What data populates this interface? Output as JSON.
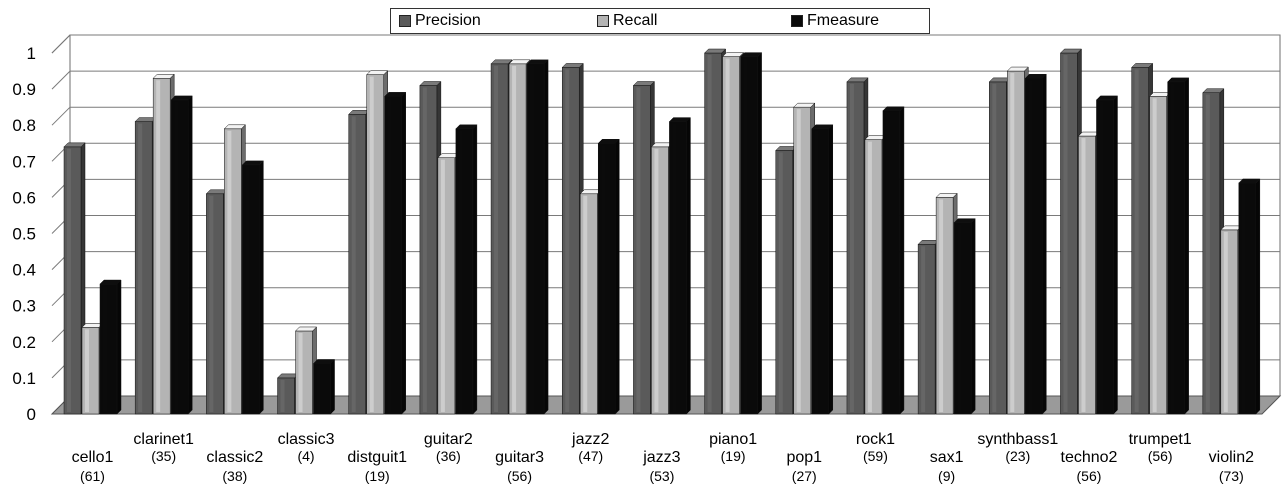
{
  "chart_data": {
    "type": "bar",
    "title": "",
    "xlabel": "",
    "ylabel": "",
    "ylim": [
      0,
      1
    ],
    "yticks": [
      "0",
      "0.1",
      "0.2",
      "0.3",
      "0.4",
      "0.5",
      "0.6",
      "0.7",
      "0.8",
      "0.9",
      "1"
    ],
    "grid": true,
    "legend_position": "top-center",
    "categories": [
      "cello1",
      "clarinet1",
      "classic2",
      "classic3",
      "distguit1",
      "guitar2",
      "guitar3",
      "jazz2",
      "jazz3",
      "piano1",
      "pop1",
      "rock1",
      "sax1",
      "synthbass1",
      "techno2",
      "trumpet1",
      "violin2"
    ],
    "category_counts": [
      "(61)",
      "(35)",
      "(38)",
      "(4)",
      "(19)",
      "(36)",
      "(56)",
      "(47)",
      "(53)",
      "(19)",
      "(27)",
      "(59)",
      "(9)",
      "(23)",
      "(56)",
      "(56)",
      "(73)"
    ],
    "series": [
      {
        "name": "Precision",
        "color": "#5a5a5a",
        "values": [
          0.74,
          0.81,
          0.61,
          0.1,
          0.83,
          0.91,
          0.97,
          0.96,
          0.91,
          1.0,
          0.73,
          0.92,
          0.47,
          0.92,
          1.0,
          0.96,
          0.89
        ]
      },
      {
        "name": "Recall",
        "color": "#b4b4b4",
        "values": [
          0.24,
          0.93,
          0.79,
          0.23,
          0.94,
          0.71,
          0.97,
          0.61,
          0.74,
          0.99,
          0.85,
          0.76,
          0.6,
          0.95,
          0.77,
          0.88,
          0.51
        ]
      },
      {
        "name": "Fmeasure",
        "color": "#0a0a0a",
        "values": [
          0.36,
          0.87,
          0.69,
          0.14,
          0.88,
          0.79,
          0.97,
          0.75,
          0.81,
          0.99,
          0.79,
          0.84,
          0.53,
          0.93,
          0.87,
          0.92,
          0.64
        ]
      }
    ]
  }
}
